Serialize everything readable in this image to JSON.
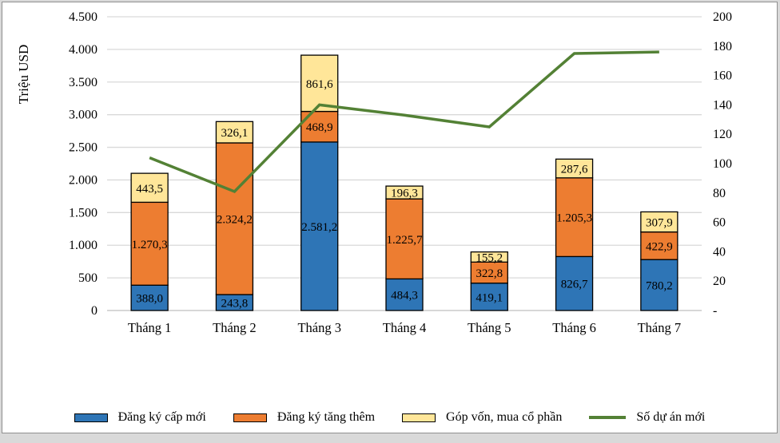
{
  "frame": {
    "page_background": "#d9d9d9",
    "panel_background": "#ffffff",
    "panel_border_color": "#8f8f8f"
  },
  "chart_data": {
    "type": "combo",
    "subtype": "stacked-bar-with-line",
    "categories": [
      "Tháng 1",
      "Tháng 2",
      "Tháng 3",
      "Tháng 4",
      "Tháng 5",
      "Tháng 6",
      "Tháng 7"
    ],
    "bar_series": [
      {
        "name": "Đăng ký cấp mới",
        "color": "#2E75B6",
        "values": [
          388.0,
          243.8,
          2581.2,
          484.3,
          419.1,
          826.7,
          780.2
        ],
        "labels": [
          "388,0",
          "243,8",
          "2.581,2",
          "484,3",
          "419,1",
          "826,7",
          "780,2"
        ]
      },
      {
        "name": "Đăng ký tăng thêm",
        "color": "#ED7D31",
        "values": [
          1270.3,
          2324.2,
          468.9,
          1225.7,
          322.8,
          1205.3,
          422.9
        ],
        "labels": [
          "1.270,3",
          "2.324,2",
          "468,9",
          "1.225,7",
          "322,8",
          "1.205,3",
          "422,9"
        ]
      },
      {
        "name": "Góp vốn, mua cổ phần",
        "color": "#FFE699",
        "values": [
          443.5,
          326.1,
          861.6,
          196.3,
          155.2,
          287.6,
          307.9
        ],
        "labels": [
          "443,5",
          "326,1",
          "861,6",
          "196,3",
          "155,2",
          "287,6",
          "307,9"
        ]
      }
    ],
    "line_series": {
      "name": "Số dự án mới",
      "color": "#538135",
      "values": [
        104,
        81,
        140,
        133,
        125,
        175,
        176
      ]
    },
    "left_axis": {
      "title": "Triệu USD",
      "min": 0,
      "max": 4500,
      "step": 500,
      "tick_labels": [
        "0",
        "500",
        "1.000",
        "1.500",
        "2.000",
        "2.500",
        "3.000",
        "3.500",
        "4.000",
        "4.500"
      ]
    },
    "right_axis": {
      "min": 0,
      "max": 200,
      "step": 20,
      "tick_labels": [
        "-",
        "20",
        "40",
        "60",
        "80",
        "100",
        "120",
        "140",
        "160",
        "180",
        "200"
      ]
    },
    "gridline_color": "#D9D9D9",
    "baseline_color": "#BFBFBF",
    "bar_border_color": "#000000",
    "legend": [
      {
        "label": "Đăng ký cấp mới",
        "color": "#2E75B6",
        "type": "box"
      },
      {
        "label": "Đăng ký tăng thêm",
        "color": "#ED7D31",
        "type": "box"
      },
      {
        "label": "Góp vốn, mua cổ phần",
        "color": "#FFE699",
        "type": "box"
      },
      {
        "label": "Số dự án mới",
        "color": "#538135",
        "type": "line"
      }
    ]
  }
}
